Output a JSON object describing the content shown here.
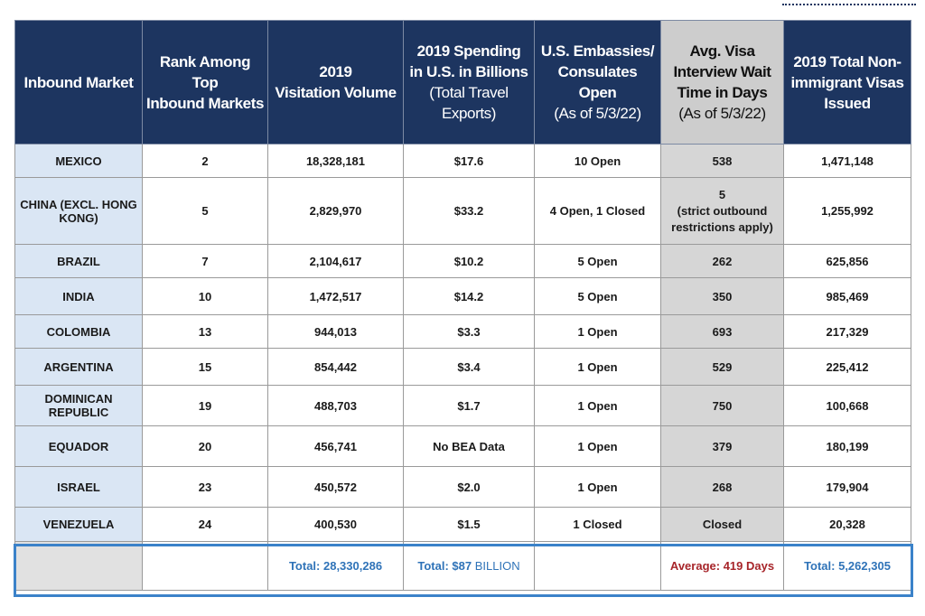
{
  "headers": {
    "market": [
      "Inbound Market"
    ],
    "rank": [
      "Rank Among Top",
      "Inbound Markets"
    ],
    "visitation": [
      "2019",
      "Visitation Volume"
    ],
    "spending": [
      "2019 Spending",
      "in U.S. in Billions",
      "(Total Travel",
      "Exports)"
    ],
    "embassies": [
      "U.S. Embassies/",
      "Consulates Open",
      "(As of 5/3/22)"
    ],
    "wait": [
      "Avg. Visa",
      "Interview Wait",
      "Time in Days",
      "(As of 5/3/22)"
    ],
    "visas": [
      "2019 Total Non-",
      "immigrant Visas",
      "Issued"
    ]
  },
  "rows": [
    {
      "market": "MEXICO",
      "rank": "2",
      "visitation": "18,328,181",
      "spending": "$17.6",
      "embassies": "10 Open",
      "wait": "538",
      "wait_note": "",
      "visas": "1,471,148"
    },
    {
      "market": "CHINA (EXCL. HONG KONG)",
      "rank": "5",
      "visitation": "2,829,970",
      "spending": "$33.2",
      "embassies": "4 Open, 1 Closed",
      "wait": "5",
      "wait_note": "(strict outbound restrictions apply)",
      "visas": "1,255,992"
    },
    {
      "market": "BRAZIL",
      "rank": "7",
      "visitation": "2,104,617",
      "spending": "$10.2",
      "embassies": "5 Open",
      "wait": "262",
      "wait_note": "",
      "visas": "625,856"
    },
    {
      "market": "INDIA",
      "rank": "10",
      "visitation": "1,472,517",
      "spending": "$14.2",
      "embassies": "5 Open",
      "wait": "350",
      "wait_note": "",
      "visas": "985,469"
    },
    {
      "market": "COLOMBIA",
      "rank": "13",
      "visitation": "944,013",
      "spending": "$3.3",
      "embassies": "1 Open",
      "wait": "693",
      "wait_note": "",
      "visas": "217,329"
    },
    {
      "market": "ARGENTINA",
      "rank": "15",
      "visitation": "854,442",
      "spending": "$3.4",
      "embassies": "1 Open",
      "wait": "529",
      "wait_note": "",
      "visas": "225,412"
    },
    {
      "market": "DOMINICAN REPUBLIC",
      "rank": "19",
      "visitation": "488,703",
      "spending": "$1.7",
      "embassies": "1 Open",
      "wait": "750",
      "wait_note": "",
      "visas": "100,668"
    },
    {
      "market": "EQUADOR",
      "rank": "20",
      "visitation": "456,741",
      "spending": "No BEA Data",
      "embassies": "1 Open",
      "wait": "379",
      "wait_note": "",
      "visas": "180,199"
    },
    {
      "market": "ISRAEL",
      "rank": "23",
      "visitation": "450,572",
      "spending": "$2.0",
      "embassies": "1 Open",
      "wait": "268",
      "wait_note": "",
      "visas": "179,904"
    },
    {
      "market": "VENEZUELA",
      "rank": "24",
      "visitation": "400,530",
      "spending": "$1.5",
      "embassies": "1 Closed",
      "wait": "Closed",
      "wait_note": "",
      "visas": "20,328"
    }
  ],
  "footer": {
    "visitation_total": "Total: 28,330,286",
    "spending_total_label": "Total: $87",
    "spending_total_unit": "BILLION",
    "wait_average": "Average: 419 Days",
    "visas_total": "Total: 5,262,305"
  },
  "colors": {
    "header_navy": "#1d3560",
    "header_gray": "#cdcdcd",
    "market_cell_blue": "#dae6f4",
    "wait_cell_gray": "#d6d6d6",
    "total_blue": "#2f73b8",
    "average_red": "#a7252a",
    "footer_frame_blue": "#3b82c9"
  }
}
